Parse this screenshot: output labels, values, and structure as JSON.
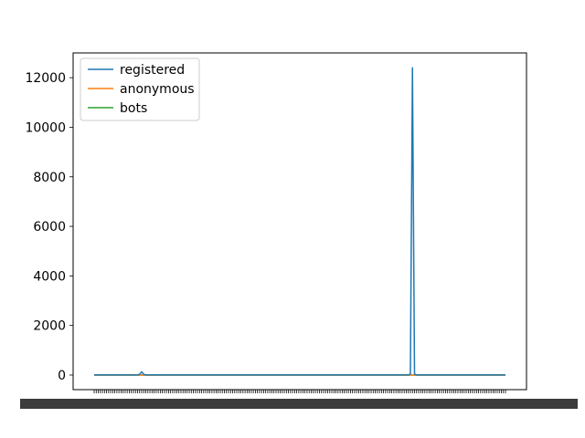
{
  "chart_data": {
    "type": "line",
    "title": "",
    "xlabel": "",
    "ylabel": "",
    "ylim": [
      -590,
      13000
    ],
    "yticks": [
      0,
      2000,
      4000,
      6000,
      8000,
      10000,
      12000
    ],
    "ytick_labels": [
      "0",
      "2000",
      "4000",
      "6000",
      "8000",
      "10000",
      "12000"
    ],
    "x_count": 200,
    "x_labels_illegible": true,
    "legend": "top-left",
    "grid": false,
    "series": [
      {
        "name": "registered",
        "color": "#1f77b4",
        "baseline": 3,
        "spikes": [
          {
            "index": 22,
            "value": 30
          },
          {
            "index": 23,
            "value": 130
          },
          {
            "index": 24,
            "value": 30
          },
          {
            "index": 153,
            "value": 40
          },
          {
            "index": 154,
            "value": 12400
          },
          {
            "index": 155,
            "value": 40
          }
        ]
      },
      {
        "name": "anonymous",
        "color": "#ff7f0e",
        "baseline": 0,
        "spikes": []
      },
      {
        "name": "bots",
        "color": "#2ca02c",
        "baseline": 0,
        "spikes": []
      }
    ]
  }
}
